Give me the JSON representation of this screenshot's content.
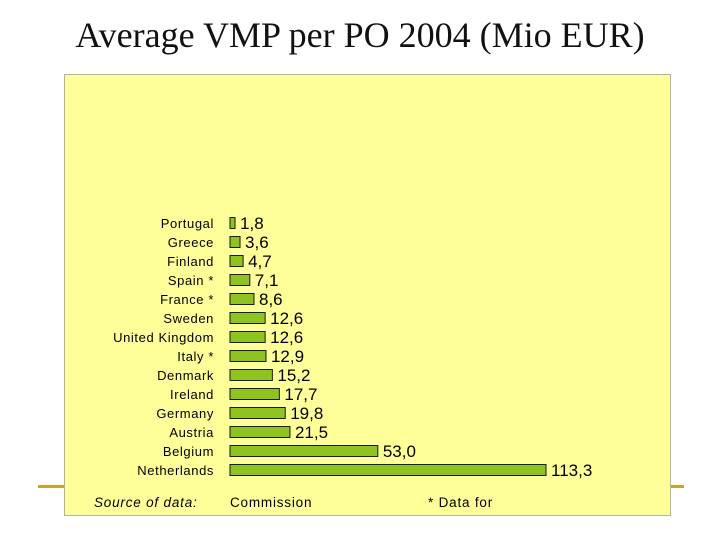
{
  "title": "Average VMP per PO 2004 (Mio EUR)",
  "colors": {
    "bar": "#8fc31f",
    "panel": "#ffff99",
    "rule": "#c8a42a"
  },
  "chart_data": {
    "type": "bar",
    "orientation": "horizontal",
    "title": "Average VMP per PO 2004 (Mio EUR)",
    "categories": [
      "Portugal",
      "Greece",
      "Finland",
      "Spain *",
      "France *",
      "Sweden",
      "United Kingdom",
      "Italy *",
      "Denmark",
      "Ireland",
      "Germany",
      "Austria",
      "Belgium",
      "Netherlands"
    ],
    "values": [
      1.8,
      3.6,
      4.7,
      7.1,
      8.6,
      12.6,
      12.6,
      12.9,
      15.2,
      17.7,
      19.8,
      21.5,
      53.0,
      113.3
    ],
    "value_labels": [
      "1,8",
      "3,6",
      "4,7",
      "7,1",
      "8,6",
      "12,6",
      "12,6",
      "12,9",
      "15,2",
      "17,7",
      "19,8",
      "21,5",
      "53,0",
      "113,3"
    ],
    "xlim": [
      0,
      113.3
    ],
    "grid": false,
    "legend": "none"
  },
  "footer": {
    "source_label": "Source of data:",
    "source_value": "Commission",
    "footnote": "* Data for"
  }
}
